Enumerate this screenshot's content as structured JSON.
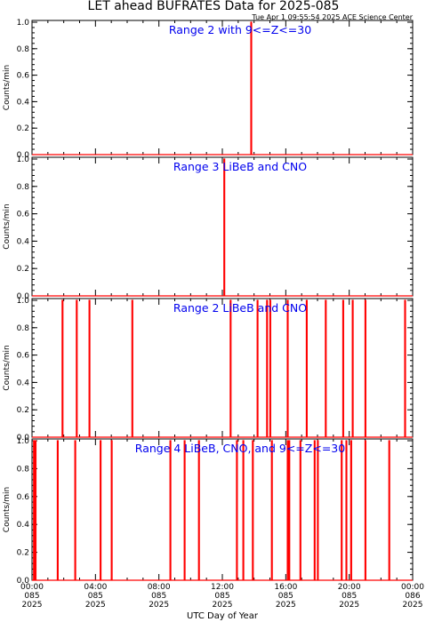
{
  "title": "LET ahead BUFRATES Data for 2025-085",
  "timestamp": "Tue Apr  1 09:55:54 2025 ACE Science Center",
  "xlabel": "UTC Day of Year",
  "colors": {
    "series": "#ff0000",
    "panel_title": "#0000ee",
    "axes": "#000000"
  },
  "chart_data": [
    {
      "type": "line",
      "title": "Range 2 with 9<=Z<=30",
      "ylabel": "Counts/min",
      "ylim": [
        0,
        1
      ],
      "yticks": [
        "0.0",
        "0.2",
        "0.4",
        "0.6",
        "0.8",
        "1.0"
      ],
      "xlim_hours": [
        0,
        24
      ],
      "spikes_hours": [
        13.8
      ]
    },
    {
      "type": "line",
      "title": "Range 3 LiBeB and CNO",
      "ylabel": "Counts/min",
      "ylim": [
        0,
        1
      ],
      "yticks": [
        "0.0",
        "0.2",
        "0.4",
        "0.6",
        "0.8",
        "1.0"
      ],
      "xlim_hours": [
        0,
        24
      ],
      "spikes_hours": [
        12.1
      ]
    },
    {
      "type": "line",
      "title": "Range 2 LiBeB and CNO",
      "ylabel": "Counts/min",
      "ylim": [
        0,
        1
      ],
      "yticks": [
        "0.0",
        "0.2",
        "0.4",
        "0.6",
        "0.8",
        "1.0"
      ],
      "xlim_hours": [
        0,
        24
      ],
      "spikes_hours": [
        1.9,
        2.8,
        3.6,
        6.3,
        12.5,
        14.2,
        14.8,
        15.0,
        16.1,
        17.3,
        18.5,
        19.6,
        20.2,
        21.0,
        23.5
      ]
    },
    {
      "type": "line",
      "title": "Range 4 LiBeB, CNO, and 9<=Z<=30",
      "ylabel": "Counts/min",
      "ylim": [
        0,
        1
      ],
      "yticks": [
        "0.0",
        "0.2",
        "0.4",
        "0.6",
        "0.8",
        "1.0"
      ],
      "xlim_hours": [
        0,
        24
      ],
      "spikes_hours": [
        0.1,
        0.2,
        1.6,
        2.7,
        4.3,
        5.0,
        8.7,
        9.6,
        10.5,
        12.9,
        13.3,
        13.9,
        15.1,
        16.1,
        16.2,
        16.9,
        17.8,
        18.0,
        19.5,
        19.8,
        20.1,
        21.0,
        22.5
      ]
    }
  ],
  "xticks": [
    {
      "hour": 0,
      "time": "00:00",
      "doy": "085",
      "year": "2025"
    },
    {
      "hour": 4,
      "time": "04:00",
      "doy": "085",
      "year": "2025"
    },
    {
      "hour": 8,
      "time": "08:00",
      "doy": "085",
      "year": "2025"
    },
    {
      "hour": 12,
      "time": "12:00",
      "doy": "085",
      "year": "2025"
    },
    {
      "hour": 16,
      "time": "16:00",
      "doy": "085",
      "year": "2025"
    },
    {
      "hour": 20,
      "time": "20:00",
      "doy": "085",
      "year": "2025"
    },
    {
      "hour": 24,
      "time": "00:00",
      "doy": "086",
      "year": "2025"
    }
  ]
}
